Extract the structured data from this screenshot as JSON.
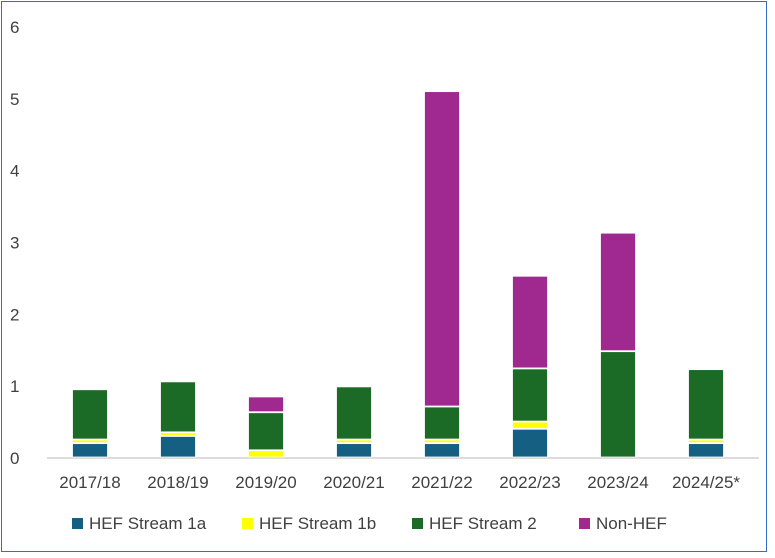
{
  "chart_data": {
    "type": "stacked-bar",
    "categories": [
      "2017/18",
      "2018/19",
      "2019/20",
      "2020/21",
      "2021/22",
      "2022/23",
      "2023/24",
      "2024/25*"
    ],
    "series": [
      {
        "name": "HEF Stream 1a",
        "color": "#156082",
        "values": [
          0.2,
          0.3,
          0,
          0.2,
          0.2,
          0.4,
          0,
          0.2
        ]
      },
      {
        "name": "HEF Stream 1b",
        "color": "#ffff00",
        "values": [
          0.05,
          0.05,
          0.1,
          0.05,
          0.05,
          0.1,
          0,
          0.05
        ]
      },
      {
        "name": "HEF Stream 2",
        "color": "#1b6b26",
        "values": [
          0.7,
          0.71,
          0.53,
          0.74,
          0.46,
          0.74,
          1.48,
          0.98
        ]
      },
      {
        "name": "Non-HEF",
        "color": "#a0298f",
        "values": [
          0,
          0,
          0.22,
          0,
          4.39,
          1.29,
          1.65,
          0
        ]
      }
    ],
    "ylim": [
      0,
      6
    ],
    "yticks": [
      "0",
      "1",
      "2",
      "3",
      "4",
      "5",
      "6"
    ],
    "grid": false,
    "legend": "bottom"
  }
}
